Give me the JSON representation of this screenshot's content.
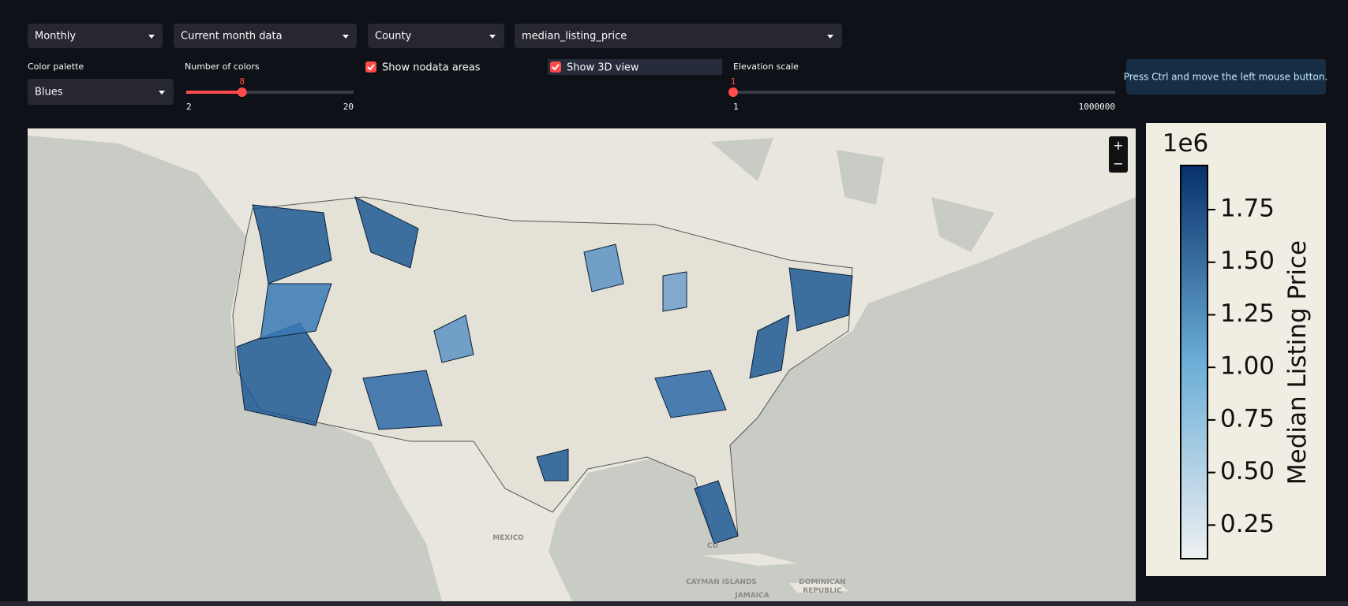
{
  "controls": {
    "frequency": "Monthly",
    "period": "Current month data",
    "scale": "County",
    "variable": "median_listing_price",
    "palette_label": "Color palette",
    "palette": "Blues",
    "colors_label": "Number of colors",
    "colors_slider": {
      "value": 8,
      "min": 2,
      "max": 20
    },
    "nodata_label": "Show nodata areas",
    "view3d_label": "Show 3D view",
    "elevation_label": "Elevation scale",
    "elevation_slider": {
      "value": 1,
      "min": 1,
      "max": 1000000
    }
  },
  "info": "Press Ctrl and move the left mouse button.",
  "map": {
    "zoom_in": "+",
    "zoom_out": "−",
    "labels": [
      "MEXICO",
      "CU",
      "CAYMAN ISLANDS",
      "JAMAICA",
      "DOMINICAN",
      "REPUBLIC"
    ]
  },
  "chart_data": {
    "type": "colorbar",
    "title": "Median Listing Price",
    "offset_label": "1e6",
    "ylim": [
      0.09,
      1.96
    ],
    "yticks": [
      0.25,
      {
        "value": 0.5,
        "label": "0.50"
      },
      0.75,
      {
        "value": 1,
        "label": "1.00"
      },
      1.25,
      {
        "value": 1.5,
        "label": "1.50"
      },
      1.75
    ],
    "colors": [
      "#eef0f2",
      "#6baed6",
      "#08306b"
    ]
  }
}
